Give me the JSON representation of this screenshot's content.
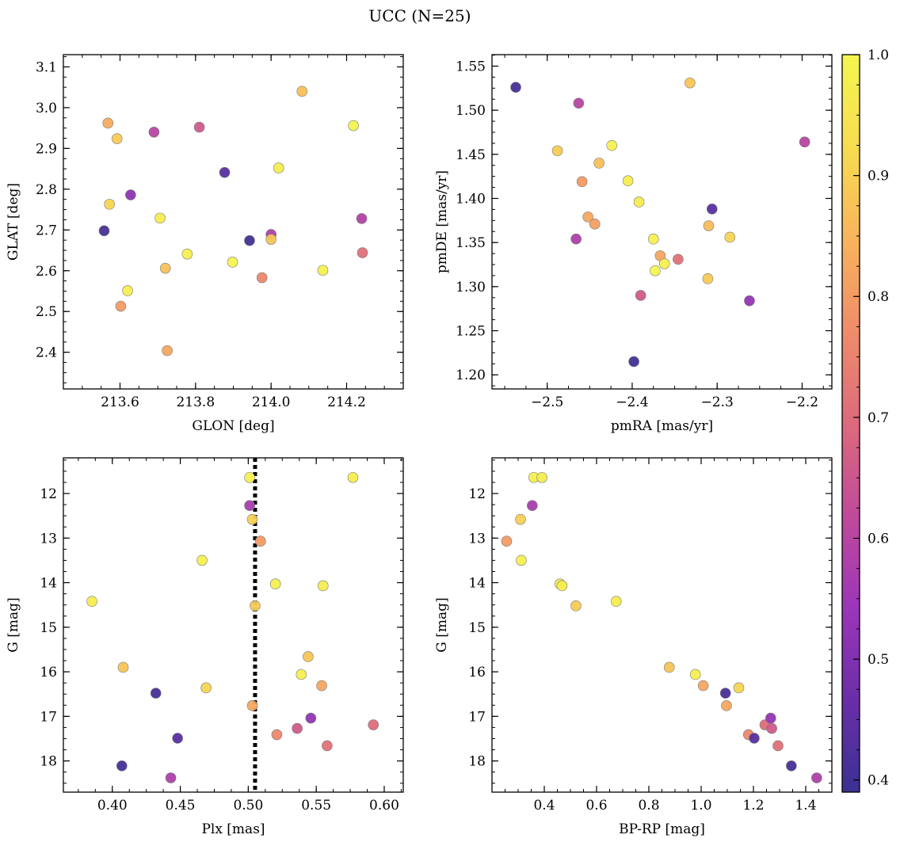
{
  "figure_title": "UCC (N=25)",
  "colormap": {
    "name": "plasma",
    "stops": [
      "#3b3192",
      "#6a2ea8",
      "#9b36b8",
      "#c04a9a",
      "#dc6a7c",
      "#ef8c6a",
      "#f8b45c",
      "#f7dc50",
      "#f4f650"
    ],
    "min": 0.39,
    "max": 1.0,
    "ticks": [
      "0.4",
      "0.5",
      "0.6",
      "0.7",
      "0.8",
      "0.9",
      "1.0"
    ],
    "tick_values": [
      0.4,
      0.5,
      0.6,
      0.7,
      0.8,
      0.9,
      1.0
    ]
  },
  "chart_data": [
    {
      "type": "scatter",
      "xlabel": "GLON [deg]",
      "ylabel": "GLAT [deg]",
      "xlim": [
        213.45,
        214.35
      ],
      "ylim": [
        2.31,
        3.13
      ],
      "xticks": [
        "213.6",
        "213.8",
        "214.0",
        "214.2"
      ],
      "xtick_values": [
        213.6,
        213.8,
        214.0,
        214.2
      ],
      "yticks": [
        "2.4",
        "2.5",
        "2.6",
        "2.7",
        "2.8",
        "2.9",
        "3.0",
        "3.1"
      ],
      "ytick_values": [
        2.4,
        2.5,
        2.6,
        2.7,
        2.8,
        2.9,
        3.0,
        3.1
      ],
      "points": [
        {
          "x": 213.558,
          "y": 2.698,
          "c": 0.41
        },
        {
          "x": 213.568,
          "y": 2.962,
          "c": 0.83
        },
        {
          "x": 213.572,
          "y": 2.763,
          "c": 0.91
        },
        {
          "x": 213.592,
          "y": 2.924,
          "c": 0.89
        },
        {
          "x": 213.602,
          "y": 2.513,
          "c": 0.8
        },
        {
          "x": 213.62,
          "y": 2.551,
          "c": 0.98
        },
        {
          "x": 213.628,
          "y": 2.786,
          "c": 0.52
        },
        {
          "x": 213.69,
          "y": 2.94,
          "c": 0.6
        },
        {
          "x": 213.706,
          "y": 2.729,
          "c": 0.97
        },
        {
          "x": 213.72,
          "y": 2.606,
          "c": 0.87
        },
        {
          "x": 213.725,
          "y": 2.404,
          "c": 0.82
        },
        {
          "x": 213.778,
          "y": 2.641,
          "c": 0.98
        },
        {
          "x": 213.81,
          "y": 2.952,
          "c": 0.66
        },
        {
          "x": 213.877,
          "y": 2.841,
          "c": 0.44
        },
        {
          "x": 213.898,
          "y": 2.621,
          "c": 0.99
        },
        {
          "x": 213.943,
          "y": 2.674,
          "c": 0.4
        },
        {
          "x": 213.976,
          "y": 2.583,
          "c": 0.76
        },
        {
          "x": 214.0,
          "y": 2.689,
          "c": 0.58
        },
        {
          "x": 214.0,
          "y": 2.677,
          "c": 0.88
        },
        {
          "x": 214.02,
          "y": 2.852,
          "c": 0.97
        },
        {
          "x": 214.082,
          "y": 3.04,
          "c": 0.87
        },
        {
          "x": 214.137,
          "y": 2.601,
          "c": 0.98
        },
        {
          "x": 214.218,
          "y": 2.956,
          "c": 0.99
        },
        {
          "x": 214.24,
          "y": 2.728,
          "c": 0.59
        },
        {
          "x": 214.242,
          "y": 2.644,
          "c": 0.71
        }
      ]
    },
    {
      "type": "scatter",
      "xlabel": "pmRA [mas/yr]",
      "ylabel": "pmDE [mas/yr]",
      "xlim": [
        -2.565,
        -2.165
      ],
      "ylim": [
        1.184,
        1.563
      ],
      "xticks": [
        "−2.5",
        "−2.4",
        "−2.3",
        "−2.2"
      ],
      "xtick_values": [
        -2.5,
        -2.4,
        -2.3,
        -2.2
      ],
      "yticks": [
        "1.20",
        "1.25",
        "1.30",
        "1.35",
        "1.40",
        "1.45",
        "1.50",
        "1.55"
      ],
      "ytick_values": [
        1.2,
        1.25,
        1.3,
        1.35,
        1.4,
        1.45,
        1.5,
        1.55
      ],
      "points": [
        {
          "x": -2.537,
          "y": 1.526,
          "c": 0.41
        },
        {
          "x": -2.488,
          "y": 1.454,
          "c": 0.89
        },
        {
          "x": -2.466,
          "y": 1.354,
          "c": 0.58
        },
        {
          "x": -2.463,
          "y": 1.508,
          "c": 0.6
        },
        {
          "x": -2.459,
          "y": 1.419,
          "c": 0.8
        },
        {
          "x": -2.452,
          "y": 1.379,
          "c": 0.82
        },
        {
          "x": -2.444,
          "y": 1.371,
          "c": 0.81
        },
        {
          "x": -2.439,
          "y": 1.44,
          "c": 0.87
        },
        {
          "x": -2.424,
          "y": 1.46,
          "c": 0.98
        },
        {
          "x": -2.405,
          "y": 1.42,
          "c": 0.97
        },
        {
          "x": -2.398,
          "y": 1.215,
          "c": 0.4
        },
        {
          "x": -2.392,
          "y": 1.396,
          "c": 0.97
        },
        {
          "x": -2.39,
          "y": 1.29,
          "c": 0.66
        },
        {
          "x": -2.375,
          "y": 1.354,
          "c": 0.98
        },
        {
          "x": -2.373,
          "y": 1.318,
          "c": 0.99
        },
        {
          "x": -2.367,
          "y": 1.335,
          "c": 0.82
        },
        {
          "x": -2.362,
          "y": 1.326,
          "c": 0.98
        },
        {
          "x": -2.346,
          "y": 1.331,
          "c": 0.71
        },
        {
          "x": -2.332,
          "y": 1.531,
          "c": 0.88
        },
        {
          "x": -2.311,
          "y": 1.309,
          "c": 0.89
        },
        {
          "x": -2.31,
          "y": 1.369,
          "c": 0.86
        },
        {
          "x": -2.306,
          "y": 1.388,
          "c": 0.44
        },
        {
          "x": -2.285,
          "y": 1.356,
          "c": 0.91
        },
        {
          "x": -2.262,
          "y": 1.284,
          "c": 0.53
        },
        {
          "x": -2.197,
          "y": 1.464,
          "c": 0.6
        }
      ]
    },
    {
      "type": "scatter",
      "xlabel": "Plx [mas]",
      "ylabel": "G [mag]",
      "xlim": [
        0.364,
        0.614
      ],
      "ylim": [
        18.7,
        11.2
      ],
      "y_inverted": true,
      "xticks": [
        "0.40",
        "0.45",
        "0.50",
        "0.55",
        "0.60"
      ],
      "xtick_values": [
        0.4,
        0.45,
        0.5,
        0.55,
        0.6
      ],
      "yticks": [
        "12",
        "13",
        "14",
        "15",
        "16",
        "17",
        "18"
      ],
      "ytick_values": [
        12,
        13,
        14,
        15,
        16,
        17,
        18
      ],
      "vline": 0.505,
      "points": [
        {
          "x": 0.385,
          "y": 14.42,
          "c": 0.97
        },
        {
          "x": 0.407,
          "y": 18.11,
          "c": 0.41
        },
        {
          "x": 0.408,
          "y": 15.9,
          "c": 0.88
        },
        {
          "x": 0.432,
          "y": 16.48,
          "c": 0.41
        },
        {
          "x": 0.443,
          "y": 18.38,
          "c": 0.58
        },
        {
          "x": 0.448,
          "y": 17.49,
          "c": 0.44
        },
        {
          "x": 0.466,
          "y": 13.5,
          "c": 0.98
        },
        {
          "x": 0.469,
          "y": 16.36,
          "c": 0.91
        },
        {
          "x": 0.501,
          "y": 11.64,
          "c": 0.98
        },
        {
          "x": 0.501,
          "y": 12.27,
          "c": 0.57
        },
        {
          "x": 0.503,
          "y": 12.58,
          "c": 0.9
        },
        {
          "x": 0.503,
          "y": 16.76,
          "c": 0.82
        },
        {
          "x": 0.505,
          "y": 14.52,
          "c": 0.89
        },
        {
          "x": 0.509,
          "y": 13.07,
          "c": 0.8
        },
        {
          "x": 0.52,
          "y": 14.03,
          "c": 0.98
        },
        {
          "x": 0.521,
          "y": 17.41,
          "c": 0.76
        },
        {
          "x": 0.536,
          "y": 17.27,
          "c": 0.66
        },
        {
          "x": 0.539,
          "y": 16.06,
          "c": 0.98
        },
        {
          "x": 0.544,
          "y": 15.66,
          "c": 0.88
        },
        {
          "x": 0.546,
          "y": 17.04,
          "c": 0.53
        },
        {
          "x": 0.554,
          "y": 16.31,
          "c": 0.82
        },
        {
          "x": 0.555,
          "y": 14.07,
          "c": 0.97
        },
        {
          "x": 0.558,
          "y": 17.66,
          "c": 0.71
        },
        {
          "x": 0.577,
          "y": 11.64,
          "c": 0.97
        },
        {
          "x": 0.592,
          "y": 17.19,
          "c": 0.7
        }
      ]
    },
    {
      "type": "scatter",
      "xlabel": "BP-RP [mag]",
      "ylabel": "G [mag]",
      "xlim": [
        0.2,
        1.5
      ],
      "ylim": [
        18.7,
        11.2
      ],
      "y_inverted": true,
      "xticks": [
        "0.4",
        "0.6",
        "0.8",
        "1.0",
        "1.2",
        "1.4"
      ],
      "xtick_values": [
        0.4,
        0.6,
        0.8,
        1.0,
        1.2,
        1.4
      ],
      "yticks": [
        "12",
        "13",
        "14",
        "15",
        "16",
        "17",
        "18"
      ],
      "ytick_values": [
        12,
        13,
        14,
        15,
        16,
        17,
        18
      ],
      "points": [
        {
          "x": 0.256,
          "y": 13.07,
          "c": 0.8
        },
        {
          "x": 0.309,
          "y": 12.58,
          "c": 0.9
        },
        {
          "x": 0.312,
          "y": 13.5,
          "c": 0.98
        },
        {
          "x": 0.354,
          "y": 12.27,
          "c": 0.57
        },
        {
          "x": 0.36,
          "y": 11.64,
          "c": 0.98
        },
        {
          "x": 0.391,
          "y": 11.64,
          "c": 0.97
        },
        {
          "x": 0.46,
          "y": 14.03,
          "c": 0.98
        },
        {
          "x": 0.468,
          "y": 14.07,
          "c": 0.97
        },
        {
          "x": 0.521,
          "y": 14.52,
          "c": 0.89
        },
        {
          "x": 0.675,
          "y": 14.42,
          "c": 0.97
        },
        {
          "x": 0.878,
          "y": 15.9,
          "c": 0.88
        },
        {
          "x": 0.978,
          "y": 16.06,
          "c": 0.98
        },
        {
          "x": 1.008,
          "y": 16.31,
          "c": 0.82
        },
        {
          "x": 1.093,
          "y": 16.48,
          "c": 0.41
        },
        {
          "x": 1.097,
          "y": 16.76,
          "c": 0.82
        },
        {
          "x": 1.144,
          "y": 16.36,
          "c": 0.91
        },
        {
          "x": 1.181,
          "y": 17.41,
          "c": 0.76
        },
        {
          "x": 1.203,
          "y": 17.49,
          "c": 0.44
        },
        {
          "x": 1.244,
          "y": 17.19,
          "c": 0.7
        },
        {
          "x": 1.266,
          "y": 17.04,
          "c": 0.53
        },
        {
          "x": 1.27,
          "y": 17.27,
          "c": 0.66
        },
        {
          "x": 1.294,
          "y": 17.66,
          "c": 0.71
        },
        {
          "x": 1.345,
          "y": 18.11,
          "c": 0.41
        },
        {
          "x": 1.442,
          "y": 18.38,
          "c": 0.58
        }
      ]
    }
  ]
}
